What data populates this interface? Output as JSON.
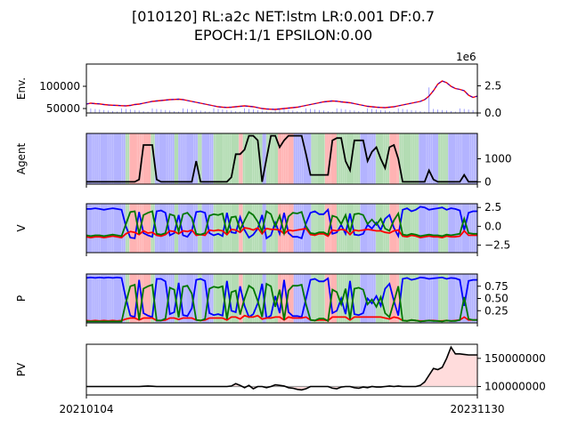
{
  "figure": {
    "title_line1": "[010120] RL:a2c NET:lstm LR:0.001 DF:0.7",
    "title_line2": "EPOCH:1/1 EPSILON:0.00"
  },
  "chart_data": [
    {
      "type": "line",
      "ylabel": "Env.",
      "description_series": [
        "price",
        "volume"
      ],
      "yticks_left": [
        "100000",
        "50000"
      ],
      "yticks_right": [
        "2.5",
        "0.0"
      ],
      "right_axis_offset": "1e6",
      "ylim_left": [
        40000,
        150000
      ],
      "ylim_right": [
        0,
        4.5
      ],
      "price": [
        60000,
        62000,
        61000,
        60500,
        59000,
        58000,
        57500,
        57000,
        56500,
        56000,
        57000,
        59000,
        60000,
        62000,
        64000,
        66000,
        67000,
        68000,
        69000,
        70000,
        70500,
        71000,
        70000,
        68000,
        66000,
        64000,
        62000,
        60000,
        58000,
        56000,
        54000,
        53000,
        52500,
        53000,
        54000,
        55000,
        56000,
        55000,
        54000,
        52000,
        50000,
        49000,
        48500,
        48000,
        49000,
        50000,
        51000,
        52000,
        53000,
        55000,
        57000,
        59000,
        61000,
        63000,
        65000,
        66000,
        67000,
        66500,
        65000,
        64000,
        63000,
        61000,
        59000,
        57000,
        55000,
        54000,
        53000,
        52500,
        52000,
        53000,
        54000,
        56000,
        58000,
        60000,
        62000,
        64000,
        66000,
        70000,
        78000,
        90000,
        105000,
        112000,
        108000,
        100000,
        95000,
        93000,
        90000,
        80000,
        75000,
        78000
      ],
      "volume_peak_index": 78
    },
    {
      "type": "line",
      "ylabel": "Agent",
      "yticks_right": [
        "1000",
        "0"
      ],
      "ylim": [
        -100,
        2100
      ],
      "values": [
        0,
        0,
        0,
        0,
        0,
        0,
        0,
        0,
        0,
        0,
        0,
        0,
        100,
        1600,
        1600,
        1600,
        100,
        0,
        0,
        0,
        0,
        0,
        0,
        0,
        0,
        900,
        0,
        0,
        0,
        0,
        0,
        0,
        0,
        200,
        1200,
        1200,
        1400,
        2000,
        2000,
        1800,
        0,
        1000,
        2000,
        2000,
        1500,
        1800,
        2000,
        2000,
        2000,
        2000,
        1200,
        300,
        300,
        300,
        300,
        300,
        1800,
        1900,
        1900,
        900,
        500,
        1800,
        1800,
        1800,
        900,
        1300,
        1500,
        1000,
        600,
        1500,
        1600,
        1000,
        0,
        0,
        0,
        0,
        0,
        0,
        500,
        100,
        0,
        0,
        0,
        0,
        0,
        0,
        300,
        0,
        0,
        0
      ]
    },
    {
      "type": "line",
      "ylabel": "V",
      "yticks_right": [
        "2.5",
        "0.0",
        "−2.5"
      ],
      "ylim": [
        -3.5,
        3.0
      ],
      "series": [
        {
          "color": "#0000ff",
          "values": [
            2.3,
            2.3,
            2.4,
            2.3,
            2.2,
            2.3,
            2.4,
            2.3,
            2.2,
            0.0,
            -1.5,
            -1.6,
            1.9,
            -0.9,
            -1.2,
            -1.4,
            2.0,
            2.1,
            1.8,
            -1.2,
            -0.9,
            1.5,
            -1.2,
            -1.4,
            -0.6,
            1.9,
            2.0,
            1.8,
            -0.9,
            -1.2,
            -1.0,
            -1.3,
            1.8,
            -0.8,
            -0.9,
            1.2,
            -0.5,
            -1.5,
            -1.1,
            -0.3,
            1.5,
            -1.6,
            -1.2,
            0.5,
            -1.0,
            1.8,
            -0.9,
            -1.4,
            -1.4,
            -1.6,
            0.4,
            1.8,
            2.0,
            1.6,
            1.6,
            2.2,
            -1.0,
            -0.8,
            0.2,
            -1.0,
            1.7,
            -1.1,
            -1.2,
            -1.0,
            0.2,
            -0.3,
            0.5,
            -0.5,
            1.0,
            1.5,
            -0.2,
            -1.3,
            2.2,
            2.4,
            2.0,
            2.2,
            2.6,
            2.5,
            2.2,
            2.3,
            2.4,
            2.5,
            2.2,
            2.4,
            2.3,
            2.1,
            -0.5,
            1.8,
            2.0,
            2.0
          ]
        },
        {
          "color": "#ff0000",
          "values": [
            -1.4,
            -1.5,
            -1.4,
            -1.4,
            -1.5,
            -1.4,
            -1.3,
            -1.4,
            -1.5,
            -1.0,
            -0.7,
            -0.8,
            -1.1,
            -0.6,
            -0.9,
            -0.8,
            -1.2,
            -1.3,
            -1.1,
            -0.6,
            -0.7,
            -1.0,
            -0.6,
            -0.7,
            -0.5,
            -1.2,
            -1.1,
            -1.2,
            -0.5,
            -0.6,
            -0.5,
            -0.6,
            -1.1,
            -0.4,
            -0.5,
            -0.8,
            -0.2,
            -0.3,
            -0.5,
            -0.2,
            -1.0,
            -0.3,
            -0.4,
            -0.4,
            -0.5,
            -1.0,
            -0.5,
            -0.6,
            -0.5,
            -0.4,
            -0.3,
            -1.1,
            -1.2,
            -1.0,
            -1.0,
            -1.3,
            -0.5,
            -0.6,
            -0.4,
            -0.5,
            -1.1,
            -0.5,
            -0.6,
            -0.5,
            -0.4,
            -0.5,
            -0.6,
            -0.6,
            -0.8,
            -0.9,
            -0.6,
            -0.5,
            -1.3,
            -1.4,
            -1.2,
            -1.3,
            -1.5,
            -1.4,
            -1.3,
            -1.4,
            -1.4,
            -1.5,
            -1.3,
            -1.4,
            -1.4,
            -1.3,
            -0.6,
            -1.2,
            -1.2,
            -1.2
          ]
        },
        {
          "color": "#007700",
          "values": [
            -1.2,
            -1.3,
            -1.2,
            -1.2,
            -1.3,
            -1.2,
            -1.1,
            -1.2,
            -1.3,
            0.3,
            1.9,
            2.0,
            -1.0,
            1.5,
            1.8,
            2.0,
            -1.0,
            -1.1,
            -0.9,
            1.6,
            1.4,
            -0.7,
            1.6,
            1.8,
            1.1,
            -1.0,
            -1.1,
            -0.9,
            1.4,
            1.6,
            1.5,
            1.7,
            -0.9,
            1.2,
            1.3,
            -0.5,
            0.8,
            1.9,
            1.5,
            0.6,
            -0.7,
            2.0,
            1.6,
            0.0,
            1.4,
            -0.9,
            1.3,
            1.8,
            1.7,
            1.9,
            0.0,
            -0.9,
            -1.0,
            -0.8,
            -0.8,
            -1.1,
            1.4,
            1.2,
            0.3,
            1.5,
            -0.8,
            1.6,
            1.7,
            1.5,
            0.3,
            0.9,
            0.2,
            1.0,
            -0.3,
            -0.6,
            0.8,
            1.7,
            -1.1,
            -1.2,
            -1.0,
            -1.1,
            -1.3,
            -1.2,
            -1.1,
            -1.2,
            -1.2,
            -1.3,
            -1.1,
            -1.2,
            -1.1,
            -1.0,
            1.0,
            -0.9,
            -1.0,
            -1.0
          ]
        }
      ]
    },
    {
      "type": "line",
      "ylabel": "P",
      "yticks_right": [
        "0.75",
        "0.50",
        "0.25"
      ],
      "ylim": [
        0.0,
        1.0
      ],
      "series": [
        {
          "color": "#0000ff",
          "values": [
            0.92,
            0.93,
            0.92,
            0.93,
            0.92,
            0.93,
            0.92,
            0.93,
            0.92,
            0.5,
            0.15,
            0.12,
            0.88,
            0.2,
            0.15,
            0.12,
            0.9,
            0.9,
            0.85,
            0.18,
            0.22,
            0.82,
            0.16,
            0.14,
            0.3,
            0.88,
            0.9,
            0.86,
            0.2,
            0.16,
            0.18,
            0.15,
            0.86,
            0.25,
            0.22,
            0.75,
            0.35,
            0.12,
            0.18,
            0.4,
            0.8,
            0.1,
            0.15,
            0.55,
            0.2,
            0.88,
            0.22,
            0.14,
            0.14,
            0.12,
            0.5,
            0.88,
            0.9,
            0.85,
            0.85,
            0.91,
            0.2,
            0.25,
            0.5,
            0.18,
            0.86,
            0.18,
            0.16,
            0.2,
            0.5,
            0.4,
            0.55,
            0.35,
            0.7,
            0.8,
            0.45,
            0.15,
            0.9,
            0.92,
            0.88,
            0.9,
            0.93,
            0.92,
            0.9,
            0.91,
            0.92,
            0.93,
            0.9,
            0.92,
            0.91,
            0.88,
            0.35,
            0.86,
            0.88,
            0.88
          ]
        },
        {
          "color": "#ff0000",
          "values": [
            0.05,
            0.04,
            0.05,
            0.04,
            0.05,
            0.04,
            0.05,
            0.04,
            0.05,
            0.08,
            0.1,
            0.1,
            0.06,
            0.1,
            0.1,
            0.1,
            0.05,
            0.05,
            0.06,
            0.1,
            0.1,
            0.07,
            0.1,
            0.1,
            0.1,
            0.06,
            0.05,
            0.06,
            0.1,
            0.1,
            0.1,
            0.1,
            0.06,
            0.12,
            0.12,
            0.08,
            0.15,
            0.12,
            0.12,
            0.15,
            0.08,
            0.1,
            0.1,
            0.12,
            0.12,
            0.06,
            0.12,
            0.1,
            0.1,
            0.1,
            0.12,
            0.06,
            0.05,
            0.06,
            0.06,
            0.05,
            0.12,
            0.12,
            0.12,
            0.12,
            0.06,
            0.12,
            0.12,
            0.12,
            0.12,
            0.12,
            0.12,
            0.12,
            0.1,
            0.08,
            0.12,
            0.1,
            0.05,
            0.04,
            0.06,
            0.05,
            0.04,
            0.04,
            0.05,
            0.05,
            0.04,
            0.04,
            0.05,
            0.04,
            0.05,
            0.06,
            0.12,
            0.06,
            0.06,
            0.06
          ]
        },
        {
          "color": "#007700",
          "values": [
            0.03,
            0.03,
            0.03,
            0.03,
            0.03,
            0.03,
            0.03,
            0.03,
            0.03,
            0.42,
            0.75,
            0.78,
            0.06,
            0.7,
            0.75,
            0.78,
            0.05,
            0.05,
            0.09,
            0.72,
            0.68,
            0.11,
            0.74,
            0.76,
            0.6,
            0.06,
            0.05,
            0.08,
            0.7,
            0.74,
            0.72,
            0.75,
            0.08,
            0.63,
            0.66,
            0.17,
            0.5,
            0.76,
            0.7,
            0.45,
            0.12,
            0.8,
            0.75,
            0.33,
            0.68,
            0.06,
            0.66,
            0.76,
            0.76,
            0.78,
            0.38,
            0.06,
            0.05,
            0.09,
            0.09,
            0.04,
            0.68,
            0.63,
            0.38,
            0.7,
            0.08,
            0.7,
            0.72,
            0.68,
            0.38,
            0.48,
            0.33,
            0.53,
            0.2,
            0.12,
            0.43,
            0.75,
            0.05,
            0.04,
            0.06,
            0.05,
            0.03,
            0.04,
            0.05,
            0.04,
            0.04,
            0.03,
            0.05,
            0.04,
            0.04,
            0.06,
            0.53,
            0.08,
            0.06,
            0.06
          ]
        }
      ]
    },
    {
      "type": "area",
      "ylabel": "PV",
      "yticks_right": [
        "150000000",
        "100000000"
      ],
      "ylim": [
        85000000,
        175000000
      ],
      "baseline": 100000000,
      "values": [
        100000000,
        100000000,
        100000000,
        100000000,
        100000000,
        100000000,
        100000000,
        100000000,
        100000000,
        100000000,
        100000000,
        100000000,
        100000000,
        100500000,
        101000000,
        100500000,
        100000000,
        100000000,
        100000000,
        100000000,
        100000000,
        100000000,
        100000000,
        100000000,
        100000000,
        100000000,
        100000000,
        100000000,
        100000000,
        100000000,
        100000000,
        100000000,
        100000000,
        101000000,
        105000000,
        102000000,
        98000000,
        102000000,
        96000000,
        100000000,
        100000000,
        98000000,
        100000000,
        103000000,
        102000000,
        101000000,
        98000000,
        97000000,
        95000000,
        94000000,
        96000000,
        100000000,
        100000000,
        100000000,
        100000000,
        100000000,
        97000000,
        96000000,
        99000000,
        100000000,
        100000000,
        98000000,
        97000000,
        99000000,
        98000000,
        100000000,
        99000000,
        99000000,
        100000000,
        101000000,
        100000000,
        101000000,
        100000000,
        100000000,
        100000000,
        100000000,
        102000000,
        108000000,
        120000000,
        132000000,
        130000000,
        134000000,
        150000000,
        170000000,
        158000000,
        158000000,
        157000000,
        156000000,
        156000000,
        156000000
      ]
    }
  ],
  "xaxis": {
    "tick_start": "20210104",
    "tick_end": "20231130"
  },
  "colors": {
    "blue": "#0000ff",
    "red": "#ff0000",
    "green": "#007700",
    "bg_blue": "#b3b3ff",
    "bg_red": "#ffb3b3",
    "bg_green": "#b3dcb3",
    "pv_fill": "#ffdcdc"
  },
  "bg_segments": [
    [
      "b",
      0,
      20
    ],
    [
      "g",
      20,
      22
    ],
    [
      "r",
      22,
      33
    ],
    [
      "g",
      33,
      35
    ],
    [
      "b",
      35,
      45
    ],
    [
      "g",
      45,
      47
    ],
    [
      "b",
      47,
      57
    ],
    [
      "g",
      57,
      59
    ],
    [
      "b",
      59,
      65
    ],
    [
      "g",
      65,
      78
    ],
    [
      "r",
      78,
      80
    ],
    [
      "g",
      80,
      90
    ],
    [
      "b",
      90,
      92
    ],
    [
      "g",
      92,
      98
    ],
    [
      "r",
      98,
      106
    ],
    [
      "b",
      106,
      115
    ],
    [
      "g",
      115,
      122
    ],
    [
      "r",
      122,
      128
    ],
    [
      "g",
      128,
      140
    ],
    [
      "b",
      140,
      148
    ],
    [
      "g",
      148,
      155
    ],
    [
      "r",
      155,
      160
    ],
    [
      "g",
      160,
      170
    ],
    [
      "b",
      170,
      180
    ],
    [
      "g",
      180,
      185
    ],
    [
      "b",
      185,
      200
    ]
  ]
}
